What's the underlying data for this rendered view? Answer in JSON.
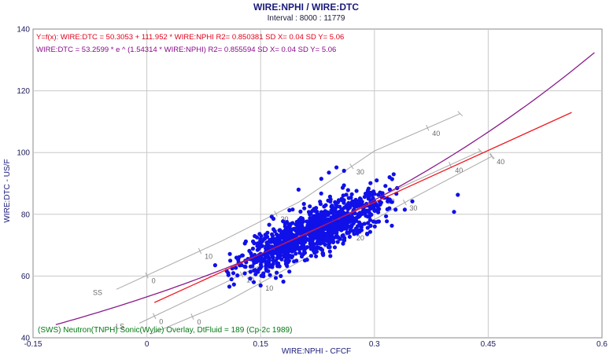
{
  "chart_data": {
    "type": "scatter",
    "title": "WIRE:NPHI / WIRE:DTC",
    "subtitle": "Interval : 8000 : 11779",
    "xlabel": "WIRE:NPHI - CFCF",
    "ylabel": "WIRE:DTC - US/F",
    "xlim": [
      -0.15,
      0.6
    ],
    "ylim": [
      40,
      140
    ],
    "xticks": [
      -0.15,
      0,
      0.15,
      0.3,
      0.45,
      0.6
    ],
    "xtick_labels": [
      "-0.15",
      "0",
      "0.15",
      "0.3",
      "0.45",
      "0.6"
    ],
    "yticks": [
      40,
      60,
      80,
      100,
      120,
      140
    ],
    "ytick_labels": [
      "40",
      "60",
      "80",
      "100",
      "120",
      "140"
    ],
    "grid": true,
    "colors": {
      "points": "#1010e8",
      "linear_fit": "#ee1c24",
      "exp_fit": "#8b1a8b",
      "overlay": "#a8a8a8",
      "grid": "#c8c8c8",
      "footer_text": "#007a10"
    },
    "annotations": {
      "linear_eq": "Y=f(x): WIRE:DTC = 50.3053  +  111.952 * WIRE:NPHI   R2= 0.850381 SD X= 0.04 SD Y= 5.06",
      "exp_eq": "WIRE:DTC = 53.2599 * e ^ (1.54314 * WIRE:NPHI)   R2= 0.855594 SD X= 0.04 SD Y= 5.06",
      "overlay_note": "(SWS) Neutron(TNPH) Sonic(Wylie) Overlay, DtFluid = 189 (Cp-2c 1989)"
    },
    "fits": {
      "linear": {
        "intercept": 50.3053,
        "slope": 111.952,
        "r2": 0.850381,
        "x_range": [
          0.01,
          0.56
        ]
      },
      "exponential": {
        "a": 53.2599,
        "b": 1.54314,
        "r2": 0.855594,
        "x_range": [
          -0.12,
          0.59
        ]
      }
    },
    "overlay_lines": [
      {
        "name": "SS",
        "label": "SS",
        "points": [
          [
            -0.04,
            55.7
          ],
          [
            0.1,
            71.5
          ],
          [
            0.2,
            83.9
          ],
          [
            0.3,
            100.5
          ],
          [
            0.413,
            112.6
          ]
        ],
        "ticks": [
          {
            "x": 0.0,
            "text": "0"
          },
          {
            "x": 0.07,
            "text": "10"
          },
          {
            "x": 0.17,
            "text": "20"
          },
          {
            "x": 0.27,
            "text": "30"
          },
          {
            "x": 0.37,
            "text": "40"
          }
        ]
      },
      {
        "name": "LS",
        "label": "LS",
        "points": [
          [
            -0.01,
            44.7
          ],
          [
            0.1,
            57.5
          ],
          [
            0.2,
            69.5
          ],
          [
            0.3,
            84.8
          ],
          [
            0.44,
            100.5
          ]
        ],
        "ticks": [
          {
            "x": 0.01,
            "text": "0"
          },
          {
            "x": 0.125,
            "text": "10"
          },
          {
            "x": 0.22,
            "text": "20"
          },
          {
            "x": 0.31,
            "text": "30"
          },
          {
            "x": 0.4,
            "text": "40"
          }
        ]
      },
      {
        "name": "DOL",
        "label": "",
        "points": [
          [
            0.005,
            41.2
          ],
          [
            0.1,
            51
          ],
          [
            0.2,
            64.5
          ],
          [
            0.35,
            85.2
          ],
          [
            0.455,
            98.8
          ]
        ],
        "ticks": [
          {
            "x": 0.06,
            "text": "0"
          },
          {
            "x": 0.15,
            "text": "10"
          },
          {
            "x": 0.27,
            "text": "20"
          },
          {
            "x": 0.34,
            "text": "30"
          },
          {
            "x": 0.455,
            "text": "40"
          }
        ]
      }
    ],
    "point_cloud": {
      "main": {
        "x_range": [
          0.1,
          0.33
        ],
        "center_line": {
          "intercept": 50.5,
          "slope": 108
        },
        "y_spread": 4,
        "count": 1100
      },
      "outliers": [
        [
          0.14,
          71.2
        ],
        [
          0.09,
          63.5
        ],
        [
          0.11,
          65
        ],
        [
          0.18,
          58.2
        ],
        [
          0.17,
          59.4
        ],
        [
          0.16,
          61.6
        ],
        [
          0.2,
          88
        ],
        [
          0.23,
          91.5
        ],
        [
          0.24,
          93.5
        ],
        [
          0.25,
          95.2
        ],
        [
          0.26,
          94.1
        ],
        [
          0.3,
          83.2
        ],
        [
          0.31,
          85.5
        ],
        [
          0.32,
          92
        ],
        [
          0.34,
          81.5
        ],
        [
          0.35,
          84.2
        ],
        [
          0.41,
          86.3
        ],
        [
          0.405,
          80.8
        ],
        [
          0.33,
          88.5
        ],
        [
          0.22,
          75.5
        ],
        [
          0.15,
          67.2
        ]
      ]
    }
  }
}
